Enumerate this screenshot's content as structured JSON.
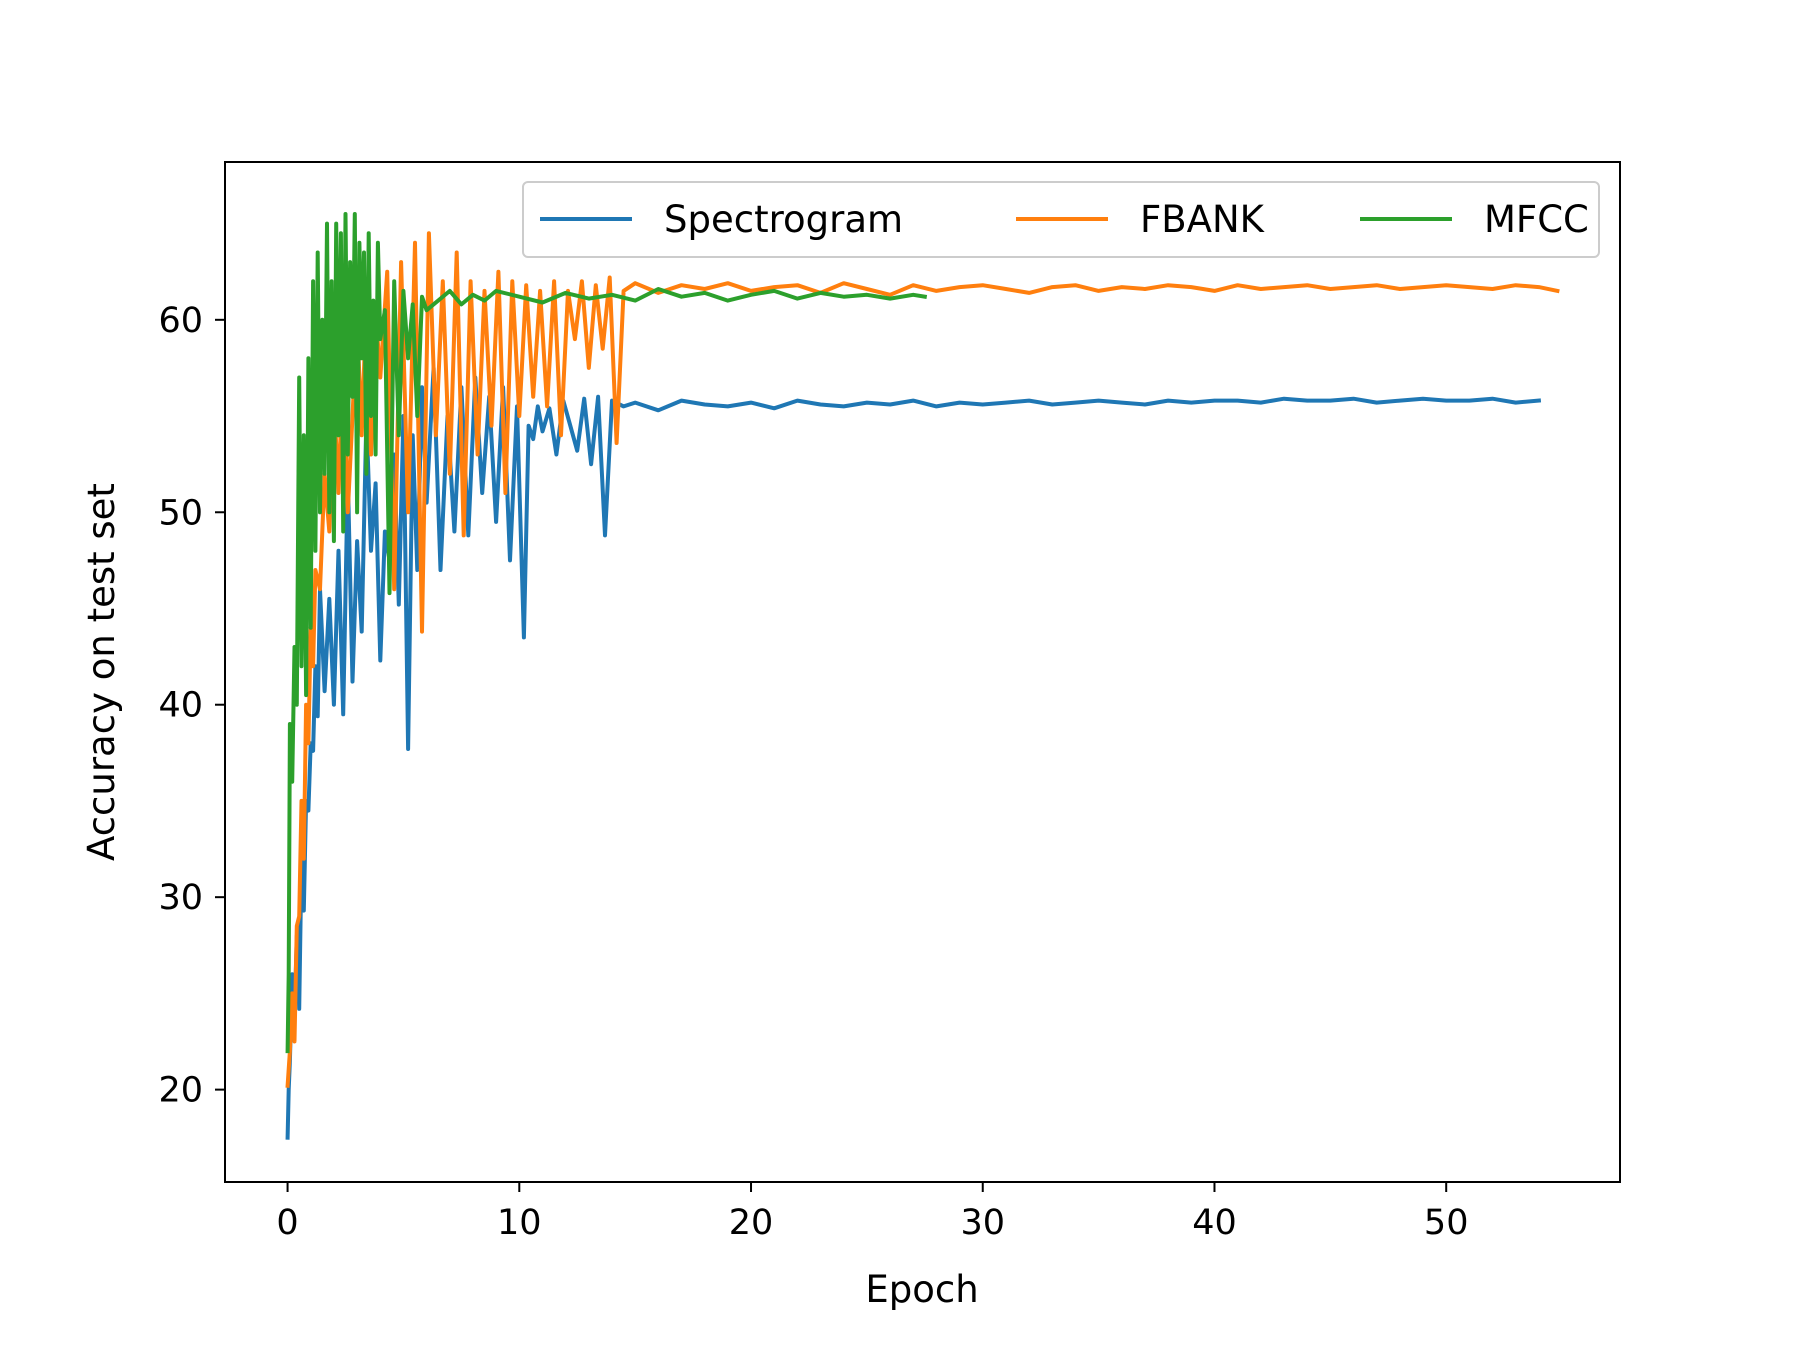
{
  "chart_data": {
    "type": "line",
    "title": "",
    "xlabel": "Epoch",
    "ylabel": "Accuracy on test set",
    "xlim": [
      -2.7,
      57.5
    ],
    "ylim": [
      15.2,
      68.2
    ],
    "xticks": [
      0,
      10,
      20,
      30,
      40,
      50
    ],
    "yticks": [
      20,
      30,
      40,
      50,
      60
    ],
    "grid": false,
    "legend_position": "top-right",
    "legend_columns": 3,
    "series": [
      {
        "name": "Spectrogram",
        "color": "#1f77b4",
        "x": [
          0,
          0.05,
          0.1,
          0.2,
          0.3,
          0.4,
          0.5,
          0.6,
          0.7,
          0.8,
          0.9,
          1.0,
          1.1,
          1.2,
          1.3,
          1.4,
          1.6,
          1.8,
          2.0,
          2.2,
          2.4,
          2.6,
          2.8,
          3.0,
          3.2,
          3.4,
          3.6,
          3.8,
          4.0,
          4.2,
          4.4,
          4.6,
          4.8,
          5.0,
          5.2,
          5.4,
          5.6,
          5.8,
          6.0,
          6.3,
          6.6,
          6.9,
          7.2,
          7.5,
          7.8,
          8.1,
          8.4,
          8.7,
          9.0,
          9.3,
          9.6,
          9.9,
          10.2,
          10.4,
          10.6,
          10.8,
          11.0,
          11.3,
          11.6,
          11.9,
          12.2,
          12.5,
          12.8,
          13.1,
          13.4,
          13.7,
          14.0,
          14.5,
          15,
          16,
          17,
          18,
          19,
          20,
          21,
          22,
          23,
          24,
          25,
          26,
          27,
          28,
          29,
          30,
          31,
          32,
          33,
          34,
          35,
          36,
          37,
          38,
          39,
          40,
          41,
          42,
          43,
          44,
          45,
          46,
          47,
          48,
          49,
          50,
          51,
          52,
          53,
          54
        ],
        "y": [
          17.5,
          20.0,
          21.5,
          26.0,
          23.8,
          28.0,
          24.2,
          32.0,
          29.3,
          35.0,
          34.5,
          38.0,
          37.6,
          42.0,
          39.4,
          46.0,
          40.7,
          45.5,
          40.0,
          48.0,
          39.5,
          52.0,
          41.2,
          48.5,
          43.8,
          55.0,
          48.0,
          51.5,
          42.3,
          49.0,
          47.5,
          53.0,
          45.2,
          55.0,
          37.7,
          54.0,
          47.0,
          56.5,
          50.5,
          57.5,
          47.0,
          55.0,
          49.0,
          56.5,
          48.8,
          57.0,
          51.0,
          56.0,
          49.5,
          56.5,
          47.5,
          55.5,
          43.5,
          54.5,
          53.8,
          55.5,
          54.2,
          55.4,
          53.0,
          55.8,
          54.5,
          53.2,
          55.9,
          52.5,
          56.0,
          48.8,
          55.8,
          55.5,
          55.7,
          55.3,
          55.8,
          55.6,
          55.5,
          55.7,
          55.4,
          55.8,
          55.6,
          55.5,
          55.7,
          55.6,
          55.8,
          55.5,
          55.7,
          55.6,
          55.7,
          55.8,
          55.6,
          55.7,
          55.8,
          55.7,
          55.6,
          55.8,
          55.7,
          55.8,
          55.8,
          55.7,
          55.9,
          55.8,
          55.8,
          55.9,
          55.7,
          55.8,
          55.9,
          55.8,
          55.8,
          55.9,
          55.7,
          55.8
        ]
      },
      {
        "name": "FBANK",
        "color": "#ff7f0e",
        "x": [
          0,
          0.1,
          0.2,
          0.3,
          0.4,
          0.5,
          0.6,
          0.7,
          0.8,
          0.9,
          1.0,
          1.1,
          1.2,
          1.4,
          1.6,
          1.8,
          2.0,
          2.2,
          2.4,
          2.6,
          2.8,
          3.0,
          3.2,
          3.4,
          3.6,
          3.8,
          4.0,
          4.3,
          4.6,
          4.9,
          5.2,
          5.5,
          5.8,
          6.1,
          6.4,
          6.7,
          7.0,
          7.3,
          7.6,
          7.9,
          8.2,
          8.5,
          8.8,
          9.1,
          9.4,
          9.7,
          10.0,
          10.3,
          10.6,
          10.9,
          11.2,
          11.5,
          11.8,
          12.1,
          12.4,
          12.7,
          13.0,
          13.3,
          13.6,
          13.9,
          14.2,
          14.5,
          15,
          16,
          17,
          18,
          19,
          20,
          21,
          22,
          23,
          24,
          25,
          26,
          27,
          28,
          29,
          30,
          31,
          32,
          33,
          34,
          35,
          36,
          37,
          38,
          39,
          40,
          41,
          42,
          43,
          44,
          45,
          46,
          47,
          48,
          49,
          50,
          51,
          52,
          53,
          54,
          54.8
        ],
        "y": [
          20.2,
          22.0,
          25.0,
          22.5,
          28.5,
          29.0,
          35.0,
          32.0,
          40.0,
          38.0,
          44.0,
          42.0,
          47.0,
          46.0,
          52.0,
          49.0,
          56.0,
          51.0,
          58.0,
          50.0,
          55.0,
          60.0,
          54.0,
          61.0,
          53.0,
          60.5,
          57.0,
          62.5,
          46.0,
          63.0,
          50.0,
          64.0,
          43.8,
          64.5,
          54.0,
          62.0,
          52.0,
          63.5,
          48.8,
          62.0,
          53.0,
          61.5,
          54.5,
          62.5,
          51.0,
          62.0,
          55.0,
          61.8,
          56.0,
          61.5,
          55.5,
          62.0,
          54.0,
          61.5,
          59.0,
          62.0,
          57.5,
          61.8,
          58.5,
          62.2,
          53.6,
          61.5,
          61.9,
          61.4,
          61.8,
          61.6,
          61.9,
          61.5,
          61.7,
          61.8,
          61.4,
          61.9,
          61.6,
          61.3,
          61.8,
          61.5,
          61.7,
          61.8,
          61.6,
          61.4,
          61.7,
          61.8,
          61.5,
          61.7,
          61.6,
          61.8,
          61.7,
          61.5,
          61.8,
          61.6,
          61.7,
          61.8,
          61.6,
          61.7,
          61.8,
          61.6,
          61.7,
          61.8,
          61.7,
          61.6,
          61.8,
          61.7,
          61.5
        ]
      },
      {
        "name": "MFCC",
        "color": "#2ca02c",
        "x": [
          0,
          0.05,
          0.1,
          0.2,
          0.3,
          0.4,
          0.5,
          0.6,
          0.7,
          0.8,
          0.9,
          1.0,
          1.1,
          1.2,
          1.3,
          1.4,
          1.5,
          1.6,
          1.7,
          1.8,
          1.9,
          2.0,
          2.1,
          2.2,
          2.3,
          2.4,
          2.5,
          2.6,
          2.7,
          2.8,
          2.9,
          3.0,
          3.1,
          3.2,
          3.3,
          3.4,
          3.5,
          3.6,
          3.7,
          3.8,
          3.9,
          4.0,
          4.2,
          4.4,
          4.6,
          4.8,
          5.0,
          5.2,
          5.4,
          5.6,
          5.8,
          6.0,
          6.5,
          7.0,
          7.5,
          8.0,
          8.5,
          9.0,
          10,
          11,
          12,
          13,
          14,
          15,
          16,
          17,
          18,
          19,
          20,
          21,
          22,
          23,
          24,
          25,
          26,
          27,
          27.5
        ],
        "y": [
          22.0,
          26.0,
          39.0,
          36.0,
          43.0,
          40.0,
          57.0,
          42.0,
          54.0,
          40.5,
          58.0,
          44.0,
          62.0,
          48.0,
          63.5,
          50.0,
          60.0,
          52.0,
          65.0,
          50.0,
          62.0,
          48.5,
          65.0,
          54.0,
          64.5,
          49.0,
          65.5,
          53.0,
          63.0,
          56.0,
          65.5,
          50.0,
          64.0,
          58.0,
          63.5,
          52.0,
          64.5,
          55.0,
          61.0,
          53.0,
          64.0,
          59.0,
          60.5,
          45.8,
          62.0,
          54.0,
          61.5,
          58.0,
          60.8,
          55.0,
          61.2,
          60.5,
          61.0,
          61.5,
          60.8,
          61.3,
          61.0,
          61.5,
          61.2,
          60.9,
          61.4,
          61.1,
          61.3,
          61.0,
          61.6,
          61.2,
          61.4,
          61.0,
          61.3,
          61.5,
          61.1,
          61.4,
          61.2,
          61.3,
          61.1,
          61.3,
          61.2
        ]
      }
    ]
  }
}
